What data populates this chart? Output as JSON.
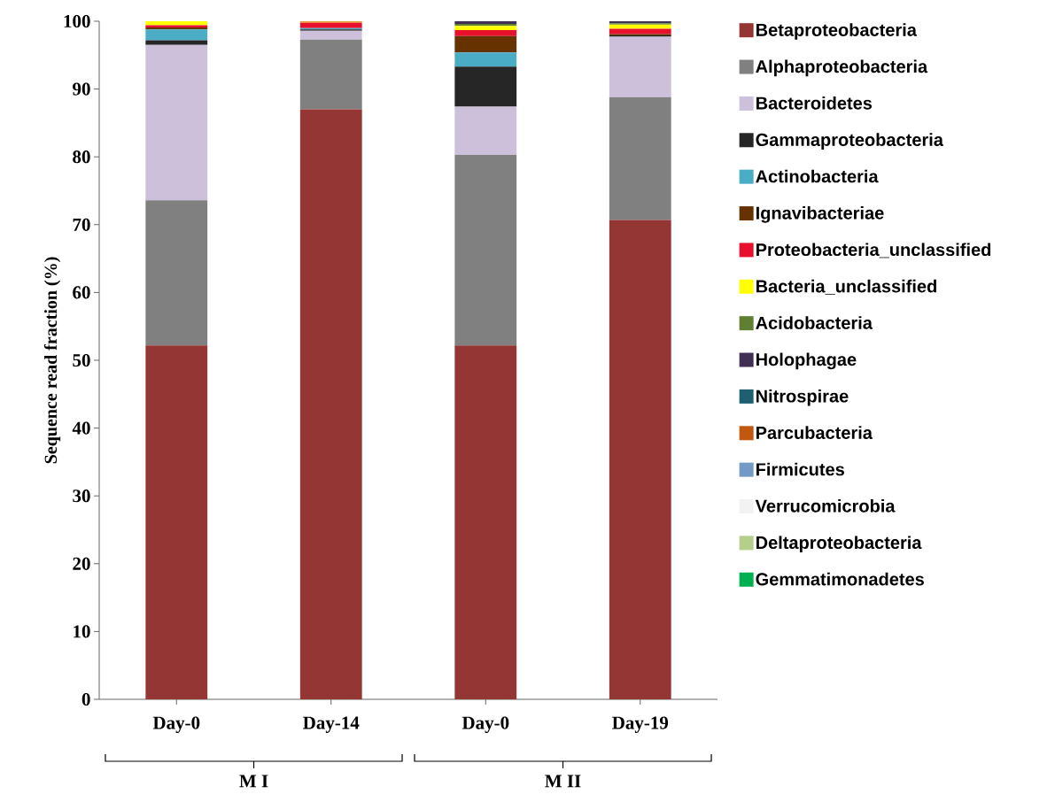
{
  "chart_data": {
    "type": "bar",
    "stacked": true,
    "ylabel": "Sequence read fraction (%)",
    "categories": [
      "Day-0",
      "Day-14",
      "Day-0",
      "Day-19"
    ],
    "ylim": [
      0,
      100
    ],
    "yticks": [
      0,
      10,
      20,
      30,
      40,
      50,
      60,
      70,
      80,
      90,
      100
    ],
    "grid": false,
    "legend": "right",
    "annotations": [
      "M  I",
      "M  II"
    ],
    "series": [
      {
        "name": "Betaproteobacteria",
        "color": "#943634",
        "values": [
          52.2,
          87.0,
          52.2,
          70.7
        ]
      },
      {
        "name": "Alphaproteobacteria",
        "color": "#808080",
        "values": [
          21.4,
          10.3,
          28.1,
          18.1
        ]
      },
      {
        "name": "Bacteroidetes",
        "color": "#ccc0da",
        "values": [
          22.9,
          1.3,
          7.1,
          8.9
        ]
      },
      {
        "name": "Gammaproteobacteria",
        "color": "#262626",
        "values": [
          0.7,
          0.2,
          5.9,
          0.2
        ]
      },
      {
        "name": "Actinobacteria",
        "color": "#4bacc6",
        "values": [
          1.6,
          0.2,
          2.1,
          0
        ]
      },
      {
        "name": "Ignavibacteriae",
        "color": "#663300",
        "values": [
          0.3,
          0,
          2.4,
          0.2
        ]
      },
      {
        "name": "Proteobacteria_unclassified",
        "color": "#e8112d",
        "values": [
          0.3,
          0.8,
          0.9,
          0.8
        ]
      },
      {
        "name": "Bacteria_unclassified",
        "color": "#ffff00",
        "values": [
          0.6,
          0.1,
          0.6,
          0.6
        ]
      },
      {
        "name": "Acidobacteria",
        "color": "#5f7f33",
        "values": [
          0,
          0,
          0.3,
          0.2
        ]
      },
      {
        "name": "Holophagae",
        "color": "#403152",
        "values": [
          0,
          0,
          0.4,
          0.3
        ]
      },
      {
        "name": "Nitrospirae",
        "color": "#1f6070",
        "values": [
          0,
          0,
          0,
          0
        ]
      },
      {
        "name": "Parcubacteria",
        "color": "#c0590f",
        "values": [
          0,
          0.1,
          0,
          0
        ]
      },
      {
        "name": "Firmicutes",
        "color": "#7399c6",
        "values": [
          0,
          0,
          0,
          0
        ]
      },
      {
        "name": "Verrucomicrobia",
        "color": "#f2f2f2",
        "values": [
          0,
          0,
          0,
          0
        ]
      },
      {
        "name": "Deltaproteobacteria",
        "color": "#b3cf8a",
        "values": [
          0,
          0,
          0,
          0
        ]
      },
      {
        "name": "Gemmatimonadetes",
        "color": "#00b050",
        "values": [
          0,
          0,
          0,
          0
        ]
      }
    ]
  }
}
